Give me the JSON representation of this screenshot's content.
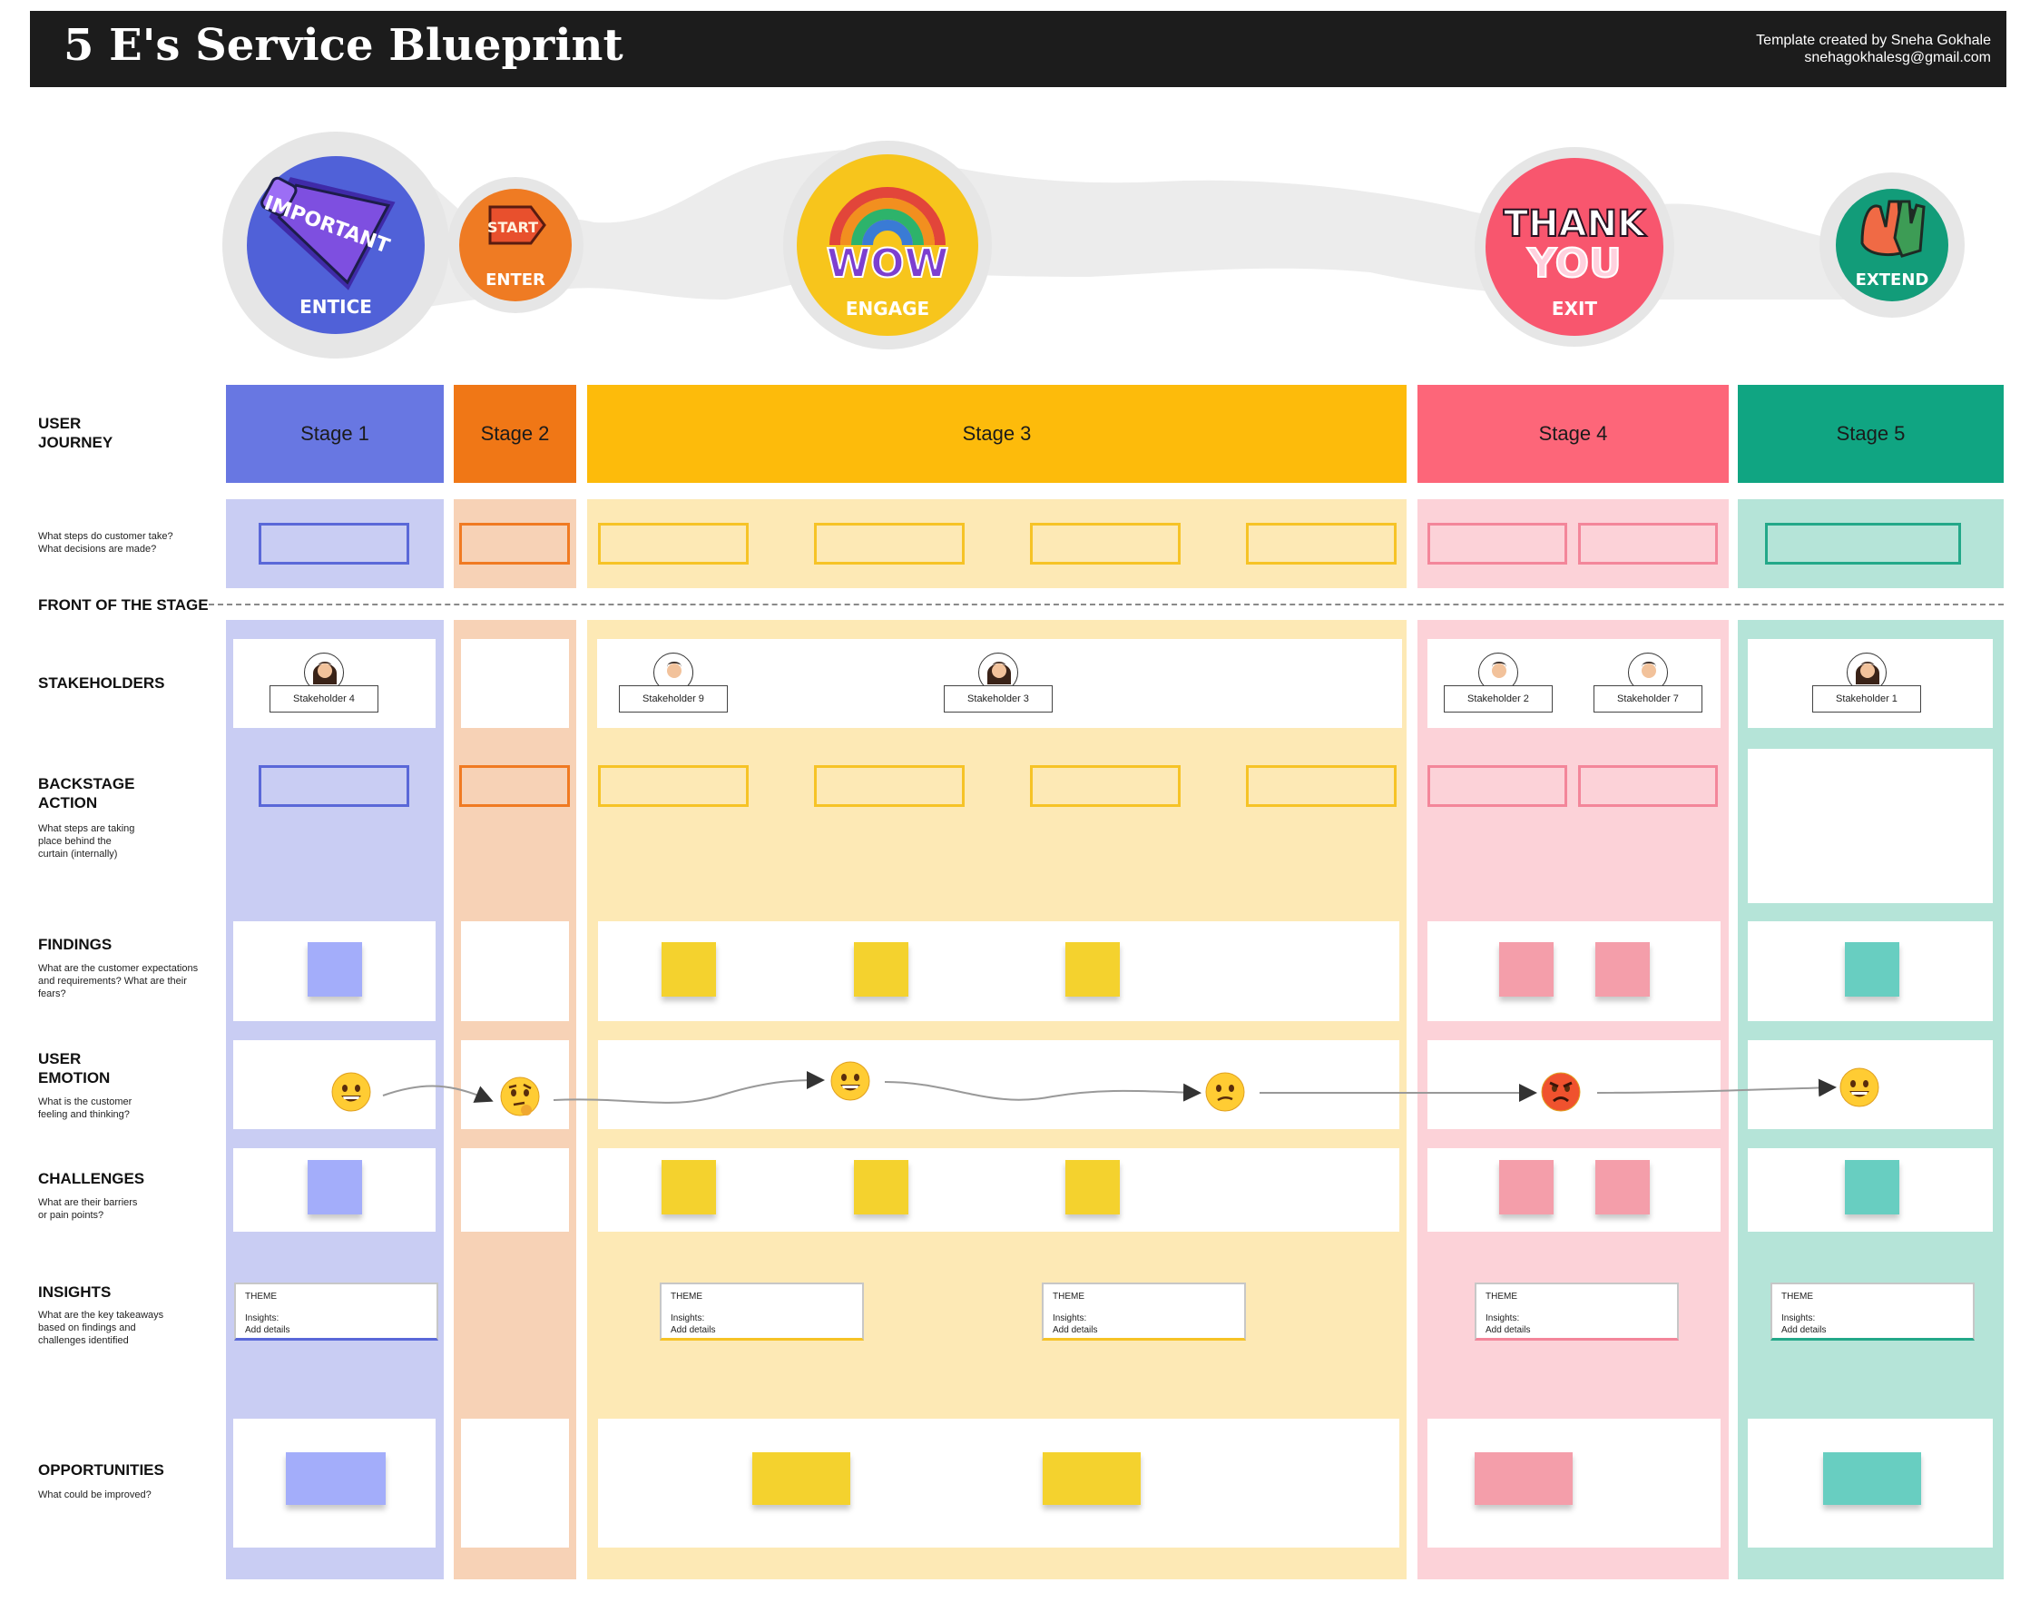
{
  "header": {
    "title": "5 E's Service Blueprint",
    "credit_line1": "Template created by Sneha Gokhale",
    "credit_line2": "snehagokhalesg@gmail.com"
  },
  "badges": [
    {
      "label": "ENTICE",
      "sticker_text": "IMPORTANT",
      "icon": "megaphone-icon",
      "color": "#5061d8"
    },
    {
      "label": "ENTER",
      "sticker_text": "START",
      "icon": "start-sign-icon",
      "color": "#ef7b23"
    },
    {
      "label": "ENGAGE",
      "sticker_text": "WOW",
      "icon": "rainbow-icon",
      "color": "#f7c51c"
    },
    {
      "label": "EXIT",
      "sticker_text": "THANK YOU",
      "icon": "thank-you-icon",
      "color": "#f8566e"
    },
    {
      "label": "EXTEND",
      "sticker_text": "",
      "icon": "hands-icon",
      "color": "#129c79"
    }
  ],
  "stages": [
    {
      "label": "Stage 1",
      "head_color": "#6877e2",
      "light_color": "#c9cdf3",
      "accent": "#5a68d8",
      "sticky": "#a3adfa"
    },
    {
      "label": "Stage 2",
      "head_color": "#f07716",
      "light_color": "#f7d2b6",
      "accent": "#f07a22",
      "sticky": "#f8d1b7"
    },
    {
      "label": "Stage 3",
      "head_color": "#fdbb0b",
      "light_color": "#fde9b5",
      "accent": "#f6c326",
      "sticky": "#f4d22e"
    },
    {
      "label": "Stage 4",
      "head_color": "#fd6679",
      "light_color": "#fcd2d8",
      "accent": "#f3869a",
      "sticky": "#f49eaa"
    },
    {
      "label": "Stage 5",
      "head_color": "#10a582",
      "light_color": "#b5e4d8",
      "accent": "#23a889",
      "sticky": "#68cec1"
    }
  ],
  "rows": {
    "user_journey": {
      "label": "USER\nJOURNEY"
    },
    "steps": {
      "sub": "What steps do customer take?\nWhat decisions are made?"
    },
    "front_of_stage": {
      "label": "FRONT OF THE STAGE"
    },
    "stakeholders": {
      "label": "STAKEHOLDERS"
    },
    "backstage": {
      "label": "BACKSTAGE\nACTION",
      "sub": "What steps are taking\nplace behind the\ncurtain (internally)"
    },
    "findings": {
      "label": "FINDINGS",
      "sub": "What are the customer expectations\nand requirements? What are their\nfears?"
    },
    "emotion": {
      "label": "USER\nEMOTION",
      "sub": "What is the customer\nfeeling and thinking?"
    },
    "challenges": {
      "label": "CHALLENGES",
      "sub": "What are their barriers\nor pain points?"
    },
    "insights": {
      "label": "INSIGHTS",
      "sub": "What are the key takeaways\nbased on findings and\nchallenges identified"
    },
    "opportunities": {
      "label": "OPPORTUNITIES",
      "sub": "What could be improved?"
    }
  },
  "stakeholders": [
    {
      "label": "Stakeholder 4",
      "icon": "woman-avatar-icon"
    },
    {
      "label": "Stakeholder 9",
      "icon": "man-avatar-icon"
    },
    {
      "label": "Stakeholder 3",
      "icon": "woman-avatar-icon"
    },
    {
      "label": "Stakeholder 2",
      "icon": "man-avatar-icon"
    },
    {
      "label": "Stakeholder 7",
      "icon": "man-avatar-icon"
    },
    {
      "label": "Stakeholder 1",
      "icon": "woman-avatar-icon"
    }
  ],
  "insight_cards": [
    {
      "theme": "THEME",
      "insights": "Insights:",
      "details": "Add details"
    },
    {
      "theme": "THEME",
      "insights": "Insights:",
      "details": "Add details"
    },
    {
      "theme": "THEME",
      "insights": "Insights:",
      "details": "Add details"
    },
    {
      "theme": "THEME",
      "insights": "Insights:",
      "details": "Add details"
    },
    {
      "theme": "THEME",
      "insights": "Insights:",
      "details": "Add details"
    }
  ],
  "emotions": [
    "grinning-face-icon",
    "thinking-face-icon",
    "grinning-face-icon",
    "confused-face-icon",
    "angry-face-icon",
    "grinning-face-icon"
  ]
}
